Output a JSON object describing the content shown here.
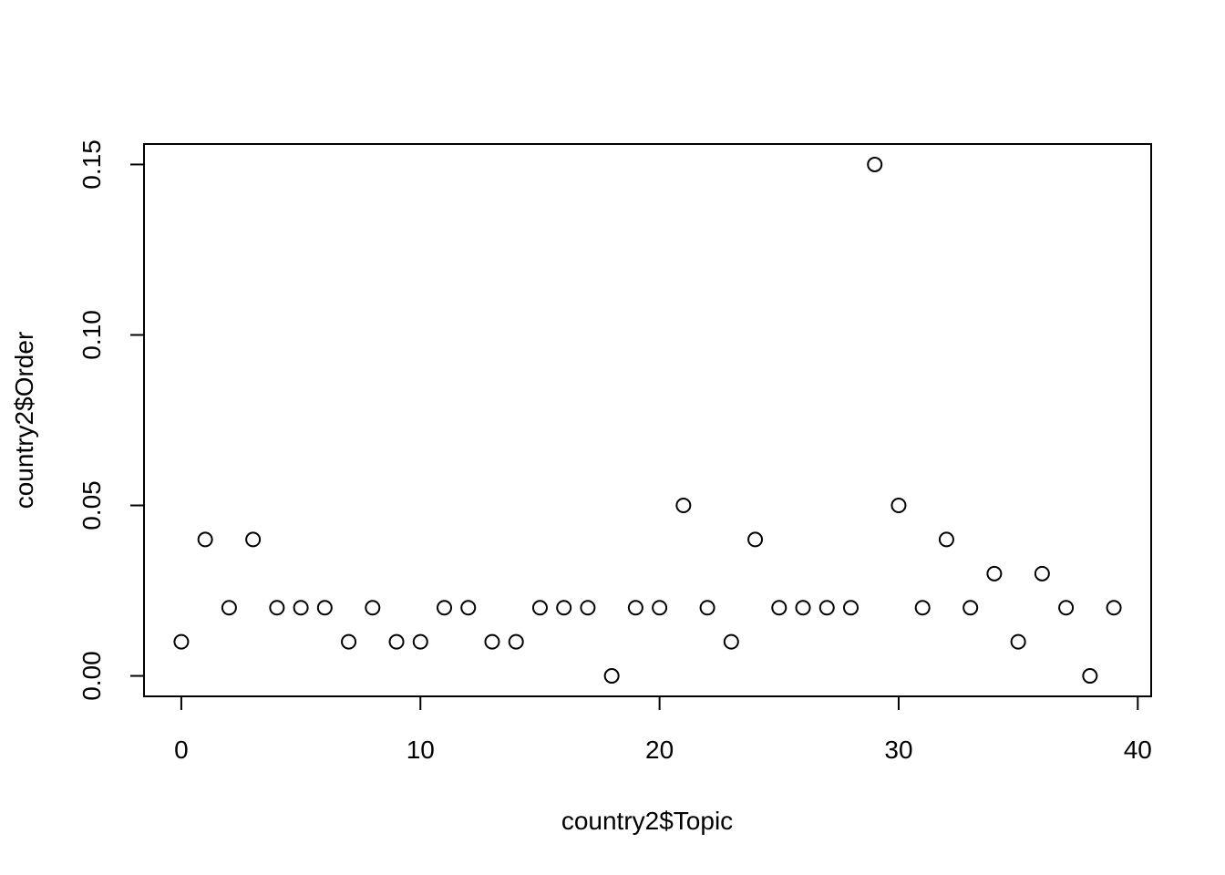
{
  "chart_data": {
    "type": "scatter",
    "title": "",
    "xlabel": "country2$Topic",
    "ylabel": "country2$Order",
    "xlim": [
      -1.56,
      40.56
    ],
    "ylim": [
      -0.006,
      0.156
    ],
    "xticks": [
      0,
      10,
      20,
      30,
      40
    ],
    "xtick_labels": [
      "0",
      "10",
      "20",
      "30",
      "40"
    ],
    "yticks": [
      0,
      0.05,
      0.1,
      0.15
    ],
    "ytick_labels": [
      "0.00",
      "0.05",
      "0.10",
      "0.15"
    ],
    "grid": false,
    "legend": "none",
    "marker": "open-circle",
    "points": [
      {
        "x": 0,
        "y": 0.01
      },
      {
        "x": 1,
        "y": 0.04
      },
      {
        "x": 2,
        "y": 0.02
      },
      {
        "x": 3,
        "y": 0.04
      },
      {
        "x": 4,
        "y": 0.02
      },
      {
        "x": 5,
        "y": 0.02
      },
      {
        "x": 6,
        "y": 0.02
      },
      {
        "x": 7,
        "y": 0.01
      },
      {
        "x": 8,
        "y": 0.02
      },
      {
        "x": 9,
        "y": 0.01
      },
      {
        "x": 10,
        "y": 0.01
      },
      {
        "x": 11,
        "y": 0.02
      },
      {
        "x": 12,
        "y": 0.02
      },
      {
        "x": 13,
        "y": 0.01
      },
      {
        "x": 14,
        "y": 0.01
      },
      {
        "x": 15,
        "y": 0.02
      },
      {
        "x": 16,
        "y": 0.02
      },
      {
        "x": 17,
        "y": 0.02
      },
      {
        "x": 18,
        "y": 0.0
      },
      {
        "x": 19,
        "y": 0.02
      },
      {
        "x": 20,
        "y": 0.02
      },
      {
        "x": 21,
        "y": 0.05
      },
      {
        "x": 22,
        "y": 0.02
      },
      {
        "x": 23,
        "y": 0.01
      },
      {
        "x": 24,
        "y": 0.04
      },
      {
        "x": 25,
        "y": 0.02
      },
      {
        "x": 26,
        "y": 0.02
      },
      {
        "x": 27,
        "y": 0.02
      },
      {
        "x": 28,
        "y": 0.02
      },
      {
        "x": 29,
        "y": 0.15
      },
      {
        "x": 30,
        "y": 0.05
      },
      {
        "x": 31,
        "y": 0.02
      },
      {
        "x": 32,
        "y": 0.04
      },
      {
        "x": 33,
        "y": 0.02
      },
      {
        "x": 34,
        "y": 0.03
      },
      {
        "x": 35,
        "y": 0.01
      },
      {
        "x": 36,
        "y": 0.03
      },
      {
        "x": 37,
        "y": 0.02
      },
      {
        "x": 38,
        "y": 0.0
      },
      {
        "x": 39,
        "y": 0.02
      }
    ]
  }
}
